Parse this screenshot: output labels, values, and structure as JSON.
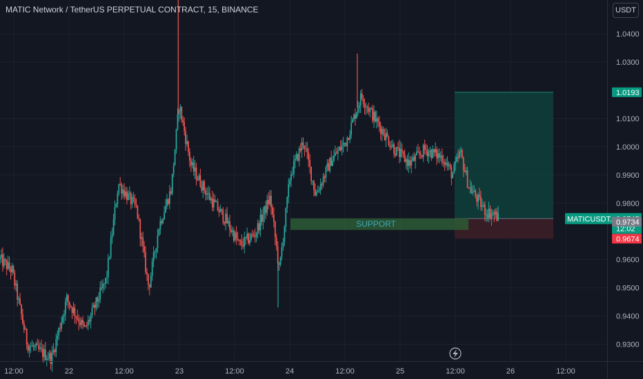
{
  "header": {
    "title": "MATIC Network / TetherUS PERPETUAL CONTRACT, 15, BINANCE",
    "currency": "USDT"
  },
  "chart_data": {
    "type": "candlestick",
    "symbol": "MATICUSDT.P",
    "ylim": [
      0.924,
      1.052
    ],
    "y_ticks": [
      {
        "value": 1.04,
        "label": "1.0400"
      },
      {
        "value": 1.03,
        "label": "1.0300"
      },
      {
        "value": 1.01,
        "label": "1.0100"
      },
      {
        "value": 1.0,
        "label": "1.0000"
      },
      {
        "value": 0.99,
        "label": "0.9900"
      },
      {
        "value": 0.98,
        "label": "0.9800"
      },
      {
        "value": 0.96,
        "label": "0.9600"
      },
      {
        "value": 0.95,
        "label": "0.9500"
      },
      {
        "value": 0.94,
        "label": "0.9400"
      },
      {
        "value": 0.93,
        "label": "0.9300"
      }
    ],
    "x_ticks": [
      "12:00",
      "22",
      "12:00",
      "23",
      "12:00",
      "24",
      "12:00",
      "25",
      "12:00",
      "26",
      "12:00"
    ],
    "price_path": [
      [
        0.0,
        0.96
      ],
      [
        0.02,
        0.956
      ],
      [
        0.045,
        0.93
      ],
      [
        0.085,
        0.925
      ],
      [
        0.11,
        0.946
      ],
      [
        0.14,
        0.935
      ],
      [
        0.175,
        0.953
      ],
      [
        0.195,
        0.987
      ],
      [
        0.225,
        0.978
      ],
      [
        0.245,
        0.95
      ],
      [
        0.262,
        0.972
      ],
      [
        0.282,
        0.985
      ],
      [
        0.295,
        1.015
      ],
      [
        0.315,
        0.993
      ],
      [
        0.345,
        0.982
      ],
      [
        0.372,
        0.974
      ],
      [
        0.395,
        0.965
      ],
      [
        0.42,
        0.969
      ],
      [
        0.445,
        0.982
      ],
      [
        0.46,
        0.956
      ],
      [
        0.478,
        0.99
      ],
      [
        0.5,
        1.002
      ],
      [
        0.52,
        0.983
      ],
      [
        0.545,
        0.995
      ],
      [
        0.57,
        1.002
      ],
      [
        0.595,
        1.018
      ],
      [
        0.62,
        1.009
      ],
      [
        0.65,
        0.999
      ],
      [
        0.675,
        0.994
      ],
      [
        0.7,
        0.999
      ],
      [
        0.73,
        0.996
      ],
      [
        0.745,
        0.99
      ],
      [
        0.758,
        0.998
      ],
      [
        0.772,
        0.986
      ],
      [
        0.8,
        0.977
      ],
      [
        0.815,
        0.976
      ],
      [
        0.822,
        0.9745
      ]
    ],
    "spikes": [
      {
        "pos": 0.2935,
        "high": 1.054
      },
      {
        "pos": 0.5885,
        "high": 1.033
      },
      {
        "pos": 0.458,
        "low": 0.943
      }
    ],
    "annotations": {
      "support_zone": {
        "label": "SUPPORT",
        "from": 0.9746,
        "to": 0.9705
      },
      "target_price": 1.0193,
      "entry_price": 0.9745,
      "stop_price": 0.9674
    },
    "price_badges": [
      {
        "label": "1.0193",
        "value": 1.0193,
        "color": "#089981"
      },
      {
        "label": "0.9745",
        "value": 0.9745,
        "color": "#089981",
        "symbol": "MATICUSDT.P",
        "countdown": "12:02"
      },
      {
        "label": "0.9734",
        "value": 0.9734,
        "color": "#787b86"
      },
      {
        "label": "0.9674",
        "value": 0.9674,
        "color": "#f23645"
      }
    ],
    "colors": {
      "up": "#26a69a",
      "down": "#ef5350",
      "background": "#131722",
      "grid": "#1e222d",
      "target_zone": "#0e3f3b",
      "stop_zone": "#3b1e27",
      "support_zone": "#2d5a35",
      "support_text": "#3fa9b8"
    }
  }
}
